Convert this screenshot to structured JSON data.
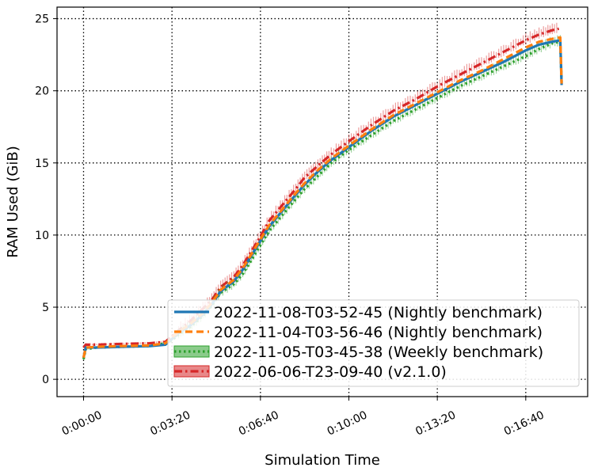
{
  "chart_data": {
    "type": "line",
    "title": "",
    "xlabel": "Simulation Time",
    "ylabel": "RAM Used (GiB)",
    "xlim": [
      -1000,
      19000
    ],
    "ylim": [
      -1.2,
      25.8
    ],
    "grid": true,
    "legend_position": "lower-right",
    "x_ticks": [
      {
        "value": 0,
        "label": "0:00:00"
      },
      {
        "value": 200,
        "label": "0:03:20"
      },
      {
        "value": 400,
        "label": "0:06:40"
      },
      {
        "value": 600,
        "label": "0:10:00"
      },
      {
        "value": 800,
        "label": "0:13:20"
      },
      {
        "value": 1000,
        "label": "0:16:40"
      }
    ],
    "y_ticks": [
      0,
      5,
      10,
      15,
      20,
      25
    ],
    "series": [
      {
        "name": "2022-11-08-T03-52-45 (Nightly benchmark)",
        "color": "#1f77b4",
        "style": "solid",
        "band": false,
        "x": [
          0,
          5,
          30,
          80,
          150,
          185,
          200,
          215,
          240,
          270,
          290,
          310,
          340,
          360,
          380,
          400,
          420,
          450,
          480,
          500,
          530,
          560,
          600,
          650,
          700,
          750,
          800,
          850,
          900,
          950,
          1000,
          1030,
          1060,
          1078,
          1081
        ],
        "y": [
          1.5,
          2.2,
          2.2,
          2.25,
          2.3,
          2.4,
          2.8,
          3.2,
          3.7,
          4.5,
          5.2,
          6.1,
          6.8,
          7.6,
          8.6,
          9.6,
          10.6,
          11.7,
          12.8,
          13.5,
          14.4,
          15.2,
          16.1,
          17.2,
          18.2,
          19.0,
          19.8,
          20.6,
          21.3,
          22.0,
          22.8,
          23.2,
          23.4,
          23.5,
          20.4
        ]
      },
      {
        "name": "2022-11-04-T03-56-46 (Nightly benchmark)",
        "color": "#ff7f0e",
        "style": "dashed",
        "band": false,
        "x": [
          0,
          5,
          30,
          80,
          150,
          185,
          200,
          215,
          240,
          270,
          290,
          310,
          340,
          360,
          380,
          400,
          420,
          450,
          480,
          500,
          530,
          560,
          600,
          650,
          700,
          750,
          800,
          850,
          900,
          950,
          1000,
          1030,
          1060,
          1078,
          1081
        ],
        "y": [
          1.5,
          2.2,
          2.25,
          2.3,
          2.35,
          2.5,
          2.9,
          3.3,
          3.8,
          4.6,
          5.3,
          6.2,
          6.9,
          7.7,
          8.7,
          9.7,
          10.7,
          11.8,
          12.9,
          13.6,
          14.5,
          15.3,
          16.2,
          17.3,
          18.3,
          19.1,
          19.9,
          20.7,
          21.4,
          22.2,
          23.0,
          23.4,
          23.6,
          23.7,
          20.5
        ]
      },
      {
        "name": "2022-11-05-T03-45-38 (Weekly benchmark)",
        "color": "#2ca02c",
        "style": "dotted",
        "band": true,
        "x": [
          0,
          5,
          30,
          80,
          150,
          185,
          200,
          215,
          240,
          270,
          290,
          310,
          340,
          360,
          380,
          400,
          420,
          450,
          480,
          500,
          530,
          560,
          600,
          650,
          700,
          750,
          800,
          850,
          900,
          950,
          1000,
          1030,
          1060,
          1078,
          1081
        ],
        "y": [
          1.4,
          2.1,
          2.2,
          2.25,
          2.3,
          2.5,
          2.7,
          3.1,
          3.6,
          4.4,
          5.1,
          6.0,
          6.6,
          7.3,
          8.3,
          9.3,
          10.3,
          11.4,
          12.5,
          13.2,
          14.1,
          15.0,
          15.9,
          16.9,
          17.9,
          18.7,
          19.5,
          20.3,
          21.0,
          21.7,
          22.4,
          22.9,
          23.3,
          23.4,
          20.6
        ]
      },
      {
        "name": "2022-06-06-T23-09-40 (v2.1.0)",
        "color": "#d62728",
        "style": "dashdot",
        "band": true,
        "x": [
          0,
          5,
          30,
          80,
          150,
          185,
          200,
          215,
          240,
          270,
          290,
          310,
          340,
          360,
          380,
          400,
          420,
          450,
          480,
          500,
          530,
          560,
          600,
          650,
          700,
          750,
          800,
          850,
          900,
          950,
          1000,
          1030,
          1060,
          1075
        ],
        "y": [
          2.2,
          2.4,
          2.4,
          2.45,
          2.5,
          2.6,
          3.0,
          3.4,
          4.0,
          4.9,
          5.5,
          6.4,
          7.1,
          7.9,
          8.9,
          9.9,
          11.0,
          12.1,
          13.2,
          14.0,
          14.8,
          15.6,
          16.5,
          17.6,
          18.6,
          19.4,
          20.3,
          21.1,
          21.9,
          22.7,
          23.5,
          23.9,
          24.2,
          24.3
        ]
      }
    ]
  }
}
